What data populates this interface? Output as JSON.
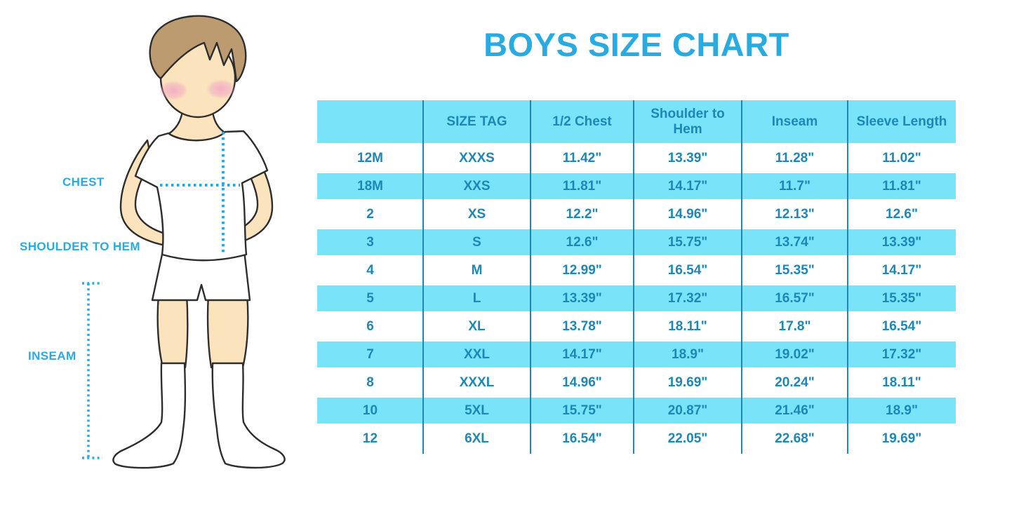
{
  "title": "BOYS SIZE CHART",
  "figure": {
    "description": "outline illustration of a boy in white t-shirt, shorts and knee socks with dotted measurement guides",
    "labels": {
      "chest": "CHEST",
      "shoulder_to_hem": "SHOULDER TO HEM",
      "inseam": "INSEAM"
    }
  },
  "colors": {
    "accent_blue": "#29ABE2",
    "table_text_blue": "#1D87B8",
    "row_fill_blue": "#79E3FA",
    "skin": "#FAE3BD",
    "hair": "#BD9B70",
    "blush": "#F2A6C4",
    "outline": "#2E2E2E"
  },
  "chart_data": {
    "type": "table",
    "title": "BOYS SIZE CHART",
    "columns": [
      "",
      "SIZE TAG",
      "1/2 Chest",
      "Shoulder to Hem",
      "Inseam",
      "Sleeve Length"
    ],
    "rows": [
      [
        "12M",
        "XXXS",
        "11.42\"",
        "13.39\"",
        "11.28\"",
        "11.02\""
      ],
      [
        "18M",
        "XXS",
        "11.81\"",
        "14.17\"",
        "11.7\"",
        "11.81\""
      ],
      [
        "2",
        "XS",
        "12.2\"",
        "14.96\"",
        "12.13\"",
        "12.6\""
      ],
      [
        "3",
        "S",
        "12.6\"",
        "15.75\"",
        "13.74\"",
        "13.39\""
      ],
      [
        "4",
        "M",
        "12.99\"",
        "16.54\"",
        "15.35\"",
        "14.17\""
      ],
      [
        "5",
        "L",
        "13.39\"",
        "17.32\"",
        "16.57\"",
        "15.35\""
      ],
      [
        "6",
        "XL",
        "13.78\"",
        "18.11\"",
        "17.8\"",
        "16.54\""
      ],
      [
        "7",
        "XXL",
        "14.17\"",
        "18.9\"",
        "19.02\"",
        "17.32\""
      ],
      [
        "8",
        "XXXL",
        "14.96\"",
        "19.69\"",
        "20.24\"",
        "18.11\""
      ],
      [
        "10",
        "5XL",
        "15.75\"",
        "20.87\"",
        "21.46\"",
        "18.9\""
      ],
      [
        "12",
        "6XL",
        "16.54\"",
        "22.05\"",
        "22.68\"",
        "19.69\""
      ]
    ]
  }
}
